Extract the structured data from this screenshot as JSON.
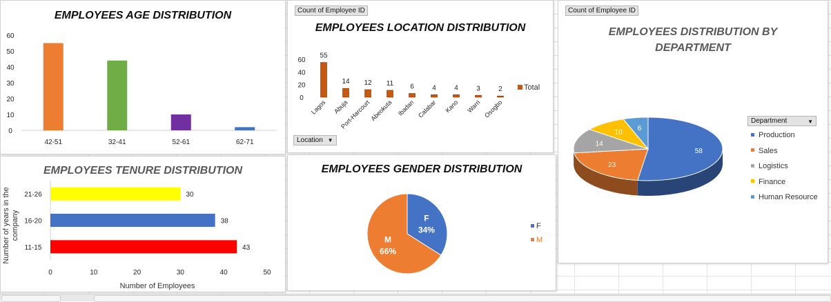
{
  "age_chart": {
    "title": "EMPLOYEES AGE DISTRIBUTION",
    "chart_data": {
      "type": "bar",
      "title": "EMPLOYEES AGE DISTRIBUTION",
      "categories": [
        "42-51",
        "32-41",
        "52-61",
        "62-71"
      ],
      "values": [
        55,
        44,
        10,
        2
      ],
      "colors": [
        "#ed7d31",
        "#70ad47",
        "#7030a0",
        "#4472c4"
      ],
      "ylim": [
        0,
        60
      ],
      "yticks": [
        "0",
        "10",
        "20",
        "30",
        "40",
        "50",
        "60"
      ]
    }
  },
  "location_chart": {
    "title": "EMPLOYEES LOCATION DISTRIBUTION",
    "field_tag": "Count of Employee ID",
    "filter_label": "Location",
    "legend_label": "Total",
    "chart_data": {
      "type": "bar",
      "title": "EMPLOYEES LOCATION DISTRIBUTION",
      "categories": [
        "Lagos",
        "Abuja",
        "Port-Harcourt",
        "Abeokuta",
        "Ibadan",
        "Calabar",
        "Kano",
        "Warri",
        "Osogbo"
      ],
      "series": [
        {
          "name": "Total",
          "values": [
            55,
            14,
            12,
            11,
            6,
            4,
            4,
            3,
            2
          ]
        }
      ],
      "data_labels": [
        "55",
        "14",
        "12",
        "11",
        "6",
        "4",
        "4",
        "3",
        "2"
      ],
      "color": "#c65911",
      "ylim": [
        0,
        60
      ],
      "yticks": [
        "0",
        "20",
        "40",
        "60"
      ]
    }
  },
  "department_chart": {
    "title_line1": "EMPLOYEES DISTRIBUTION BY",
    "title_line2": "DEPARTMENT",
    "field_tag": "Count of Employee ID",
    "filter_label": "Department",
    "chart_data": {
      "type": "pie",
      "title": "EMPLOYEES DISTRIBUTION BY DEPARTMENT",
      "categories": [
        "Production",
        "Sales",
        "Logistics",
        "Finance",
        "Human Resource"
      ],
      "values": [
        58,
        23,
        14,
        10,
        6
      ],
      "data_labels": [
        "58",
        "23",
        "14",
        "10",
        "6"
      ],
      "colors": [
        "#4472c4",
        "#ed7d31",
        "#a5a5a5",
        "#ffc000",
        "#5b9bd5"
      ]
    }
  },
  "tenure_chart": {
    "title": "EMPLOYEES TENURE DISTRIBUTION",
    "chart_data": {
      "type": "bar",
      "orientation": "horizontal",
      "title": "EMPLOYEES TENURE DISTRIBUTION",
      "categories": [
        "21-26",
        "16-20",
        "11-15"
      ],
      "values": [
        30,
        38,
        43
      ],
      "data_labels": [
        "30",
        "38",
        "43"
      ],
      "colors": [
        "#ffff00",
        "#4472c4",
        "#ff0000"
      ],
      "xlim": [
        0,
        50
      ],
      "xticks": [
        "0",
        "10",
        "20",
        "30",
        "40",
        "50"
      ],
      "xlabel": "Number of Employees",
      "ylabel_line1": "Number of years in the",
      "ylabel_line2": "company"
    }
  },
  "gender_chart": {
    "title": "EMPLOYEES GENDER DISTRIBUTION",
    "chart_data": {
      "type": "pie",
      "title": "EMPLOYEES GENDER DISTRIBUTION",
      "categories": [
        "F",
        "M"
      ],
      "values": [
        34,
        66
      ],
      "percent_labels": [
        "34%",
        "66%"
      ],
      "colors": [
        "#4472c4",
        "#ed7d31"
      ]
    }
  }
}
